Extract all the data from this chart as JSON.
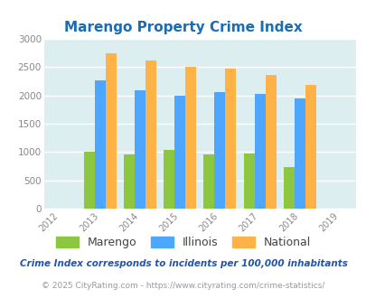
{
  "title": "Marengo Property Crime Index",
  "years": [
    2012,
    2013,
    2014,
    2015,
    2016,
    2017,
    2018,
    2019
  ],
  "bar_years": [
    2013,
    2014,
    2015,
    2016,
    2017,
    2018
  ],
  "marengo": [
    1010,
    950,
    1030,
    960,
    980,
    730
  ],
  "illinois": [
    2270,
    2090,
    2000,
    2060,
    2020,
    1950
  ],
  "national": [
    2750,
    2610,
    2500,
    2470,
    2360,
    2185
  ],
  "bar_width": 0.27,
  "ylim": [
    0,
    3000
  ],
  "yticks": [
    0,
    500,
    1000,
    1500,
    2000,
    2500,
    3000
  ],
  "color_marengo": "#8dc63f",
  "color_illinois": "#4da6ff",
  "color_national": "#ffb347",
  "title_color": "#1a6db5",
  "plot_bg": "#ddeef0",
  "grid_color": "#ffffff",
  "footnote1": "Crime Index corresponds to incidents per 100,000 inhabitants",
  "footnote2": "© 2025 CityRating.com - https://www.cityrating.com/crime-statistics/",
  "footnote1_color": "#2255aa",
  "footnote2_color": "#999999",
  "legend_labels": [
    "Marengo",
    "Illinois",
    "National"
  ],
  "tick_label_color": "#888888",
  "legend_text_color": "#444444"
}
